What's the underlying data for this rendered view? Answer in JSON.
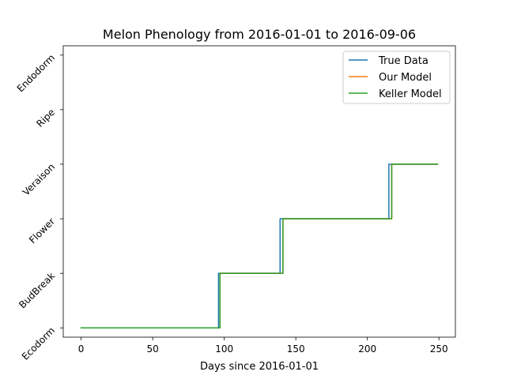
{
  "chart_data": {
    "type": "line",
    "title": "Melon Phenology from 2016-01-01 to 2016-09-06",
    "xlabel": "Days since 2016-01-01",
    "ylabel": "",
    "xlim": [
      -12.5,
      261.5
    ],
    "ylim": [
      -0.17,
      5.17
    ],
    "x_ticks": [
      0,
      50,
      100,
      150,
      200,
      250
    ],
    "y_tick_labels": [
      "Ecodorm",
      "BudBreak",
      "Flower",
      "Veraison",
      "Ripe",
      "Endodorm"
    ],
    "legend_placement": "top-right",
    "grid": false,
    "series": [
      {
        "name": "True Data",
        "color": "#1f77b4",
        "points": [
          [
            0,
            0
          ],
          [
            96,
            0
          ],
          [
            96,
            1
          ],
          [
            139,
            1
          ],
          [
            139,
            2
          ],
          [
            215,
            2
          ],
          [
            215,
            3
          ],
          [
            249,
            3
          ]
        ]
      },
      {
        "name": "Our Model",
        "color": "#ff7f0e",
        "points": [
          [
            0,
            0
          ],
          [
            97,
            0
          ],
          [
            97,
            1
          ],
          [
            141,
            1
          ],
          [
            141,
            2
          ],
          [
            217,
            2
          ],
          [
            217,
            3
          ],
          [
            249,
            3
          ]
        ]
      },
      {
        "name": "Keller Model",
        "color": "#2ca02c",
        "points": [
          [
            0,
            0
          ],
          [
            97,
            0
          ],
          [
            97,
            1
          ],
          [
            141,
            1
          ],
          [
            141,
            2
          ],
          [
            217,
            2
          ],
          [
            217,
            3
          ],
          [
            249,
            3
          ]
        ]
      }
    ]
  }
}
